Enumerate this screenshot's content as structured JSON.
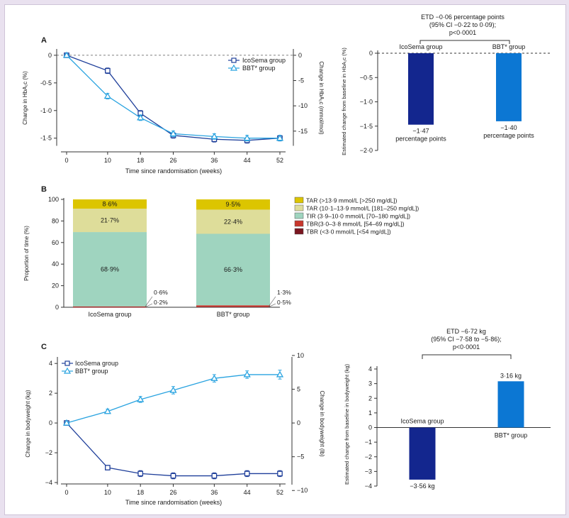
{
  "panels": {
    "a": "A",
    "b": "B",
    "c": "C"
  },
  "chart_data": [
    {
      "id": "hba1c_time",
      "type": "line",
      "xlabel": "Time since randomisation (weeks)",
      "ylabel": "Change in HbA₁c (%)",
      "y2label": "Change in HbA₁c (mmol/mol)",
      "x": [
        0,
        10,
        18,
        26,
        36,
        44,
        52
      ],
      "x_ticks": [
        "0",
        "10",
        "18",
        "26",
        "36",
        "44",
        "52"
      ],
      "ylim": [
        -1.6,
        0.05
      ],
      "y_ticks": [
        0,
        -0.5,
        -1.0,
        -1.5
      ],
      "y_tick_labels": [
        "0",
        "-0·5",
        "-1·0",
        "-1·5"
      ],
      "y2_ticks": [
        0,
        -5,
        -10,
        -15
      ],
      "y2_tick_labels": [
        "0",
        "-5",
        "-10",
        "-15"
      ],
      "series": [
        {
          "name": "IcoSema group",
          "marker": "square",
          "color": "#1f3f9a",
          "values": [
            0,
            -0.28,
            -1.05,
            -1.45,
            -1.52,
            -1.54,
            -1.5
          ],
          "err": [
            0.02,
            0.05,
            0.05,
            0.05,
            0.05,
            0.05,
            0.05
          ]
        },
        {
          "name": "BBT* group",
          "marker": "triangle",
          "color": "#29a3e0",
          "values": [
            0,
            -0.74,
            -1.13,
            -1.42,
            -1.47,
            -1.5,
            -1.5
          ],
          "err": [
            0.02,
            0.05,
            0.05,
            0.05,
            0.05,
            0.05,
            0.05
          ]
        }
      ],
      "legend": [
        "IcoSema group",
        "BBT* group"
      ]
    },
    {
      "id": "hba1c_etd",
      "type": "bar",
      "ylabel": "Estimated change from baseline in HbA₁c (%)",
      "categories": [
        "IcoSema group",
        "BBT* group"
      ],
      "values": [
        -1.47,
        -1.4
      ],
      "colors": [
        "#13268e",
        "#0c77d3"
      ],
      "value_labels": [
        "−1·47",
        "−1·40"
      ],
      "unit_label": "percentage points",
      "ylim": [
        -2.0,
        0
      ],
      "y_ticks": [
        0,
        -0.5,
        -1.0,
        -1.5,
        -2.0
      ],
      "y_tick_labels": [
        "0",
        "−0·5",
        "−1·0",
        "−1·5",
        "−2·0"
      ],
      "annotation": [
        "ETD −0·06 percentage points",
        "(95% CI −0·22 to 0·09);",
        "p<0·0001"
      ]
    },
    {
      "id": "cgm",
      "type": "bar",
      "stacked": true,
      "ylabel": "Proportion of time (%)",
      "categories": [
        "IcoSema group",
        "BBT* group"
      ],
      "ylim": [
        0,
        100
      ],
      "y_ticks": [
        0,
        20,
        40,
        60,
        80,
        100
      ],
      "series": [
        {
          "name": "TBR (<3·0 mmol/L [<54 mg/dL])",
          "color": "#7a1620",
          "values": [
            0.2,
            0.5
          ],
          "labels": [
            "0·2%",
            "0·5%"
          ]
        },
        {
          "name": "TBR(3·0–3·8 mmol/L [54–69 mg/dL])",
          "color": "#c8362c",
          "values": [
            0.6,
            1.3
          ],
          "labels": [
            "0·6%",
            "1·3%"
          ]
        },
        {
          "name": "TIR (3·9–10·0 mmol/L [70–180 mg/dL])",
          "color": "#9fd4bf",
          "values": [
            68.9,
            66.3
          ],
          "labels": [
            "68·9%",
            "66·3%"
          ]
        },
        {
          "name": "TAR (10·1–13·9 mmol/L [181–250 mg/dL])",
          "color": "#dedd9a",
          "values": [
            21.7,
            22.4
          ],
          "labels": [
            "21·7%",
            "22·4%"
          ]
        },
        {
          "name": "TAR (>13·9 mmol/L [>250 mg/dL])",
          "color": "#dcc500",
          "values": [
            8.6,
            9.5
          ],
          "labels": [
            "8·6%",
            "9·5%"
          ]
        }
      ]
    },
    {
      "id": "weight_time",
      "type": "line",
      "xlabel": "Time since randomisation (weeks)",
      "ylabel": "Change in bodyweight (kg)",
      "y2label": "Change in bodyweight (lb)",
      "x": [
        0,
        10,
        18,
        26,
        36,
        44,
        52
      ],
      "x_ticks": [
        "0",
        "10",
        "18",
        "26",
        "36",
        "44",
        "52"
      ],
      "ylim": [
        -4,
        4.2
      ],
      "y_ticks": [
        4,
        2,
        0,
        -2,
        -4
      ],
      "y_tick_labels": [
        "4",
        "2",
        "0",
        "−2",
        "−4"
      ],
      "y2_ticks": [
        10,
        5,
        0,
        -5,
        -10
      ],
      "y2_tick_labels": [
        "10",
        "5",
        "0",
        "−5",
        "−10"
      ],
      "series": [
        {
          "name": "IcoSema group",
          "marker": "square",
          "color": "#1f3f9a",
          "values": [
            0,
            -3.0,
            -3.4,
            -3.55,
            -3.55,
            -3.4,
            -3.4
          ],
          "err": [
            0.05,
            0.15,
            0.2,
            0.2,
            0.2,
            0.2,
            0.2
          ]
        },
        {
          "name": "BBT* group",
          "marker": "triangle",
          "color": "#29a3e0",
          "values": [
            0,
            0.78,
            1.58,
            2.2,
            3.0,
            3.25,
            3.25
          ],
          "err": [
            0.05,
            0.15,
            0.2,
            0.25,
            0.25,
            0.25,
            0.3
          ]
        }
      ],
      "legend": [
        "IcoSema group",
        "BBT* group"
      ]
    },
    {
      "id": "weight_etd",
      "type": "bar",
      "ylabel": "Estimated change from baseline in bodyweight (kg)",
      "categories": [
        "IcoSema group",
        "BBT* group"
      ],
      "values": [
        -3.56,
        3.16
      ],
      "colors": [
        "#13268e",
        "#0c77d3"
      ],
      "value_labels": [
        "−3·56 kg",
        "3·16 kg"
      ],
      "ylim": [
        -4,
        4
      ],
      "y_ticks": [
        4,
        3,
        2,
        1,
        0,
        -1,
        -2,
        -3,
        -4
      ],
      "y_tick_labels": [
        "4",
        "3",
        "2",
        "1",
        "0",
        "−1",
        "−2",
        "−3",
        "−4"
      ],
      "annotation": [
        "ETD −6·72 kg",
        "(95% CI −7·58 to −5·86);",
        "p<0·0001"
      ]
    }
  ]
}
